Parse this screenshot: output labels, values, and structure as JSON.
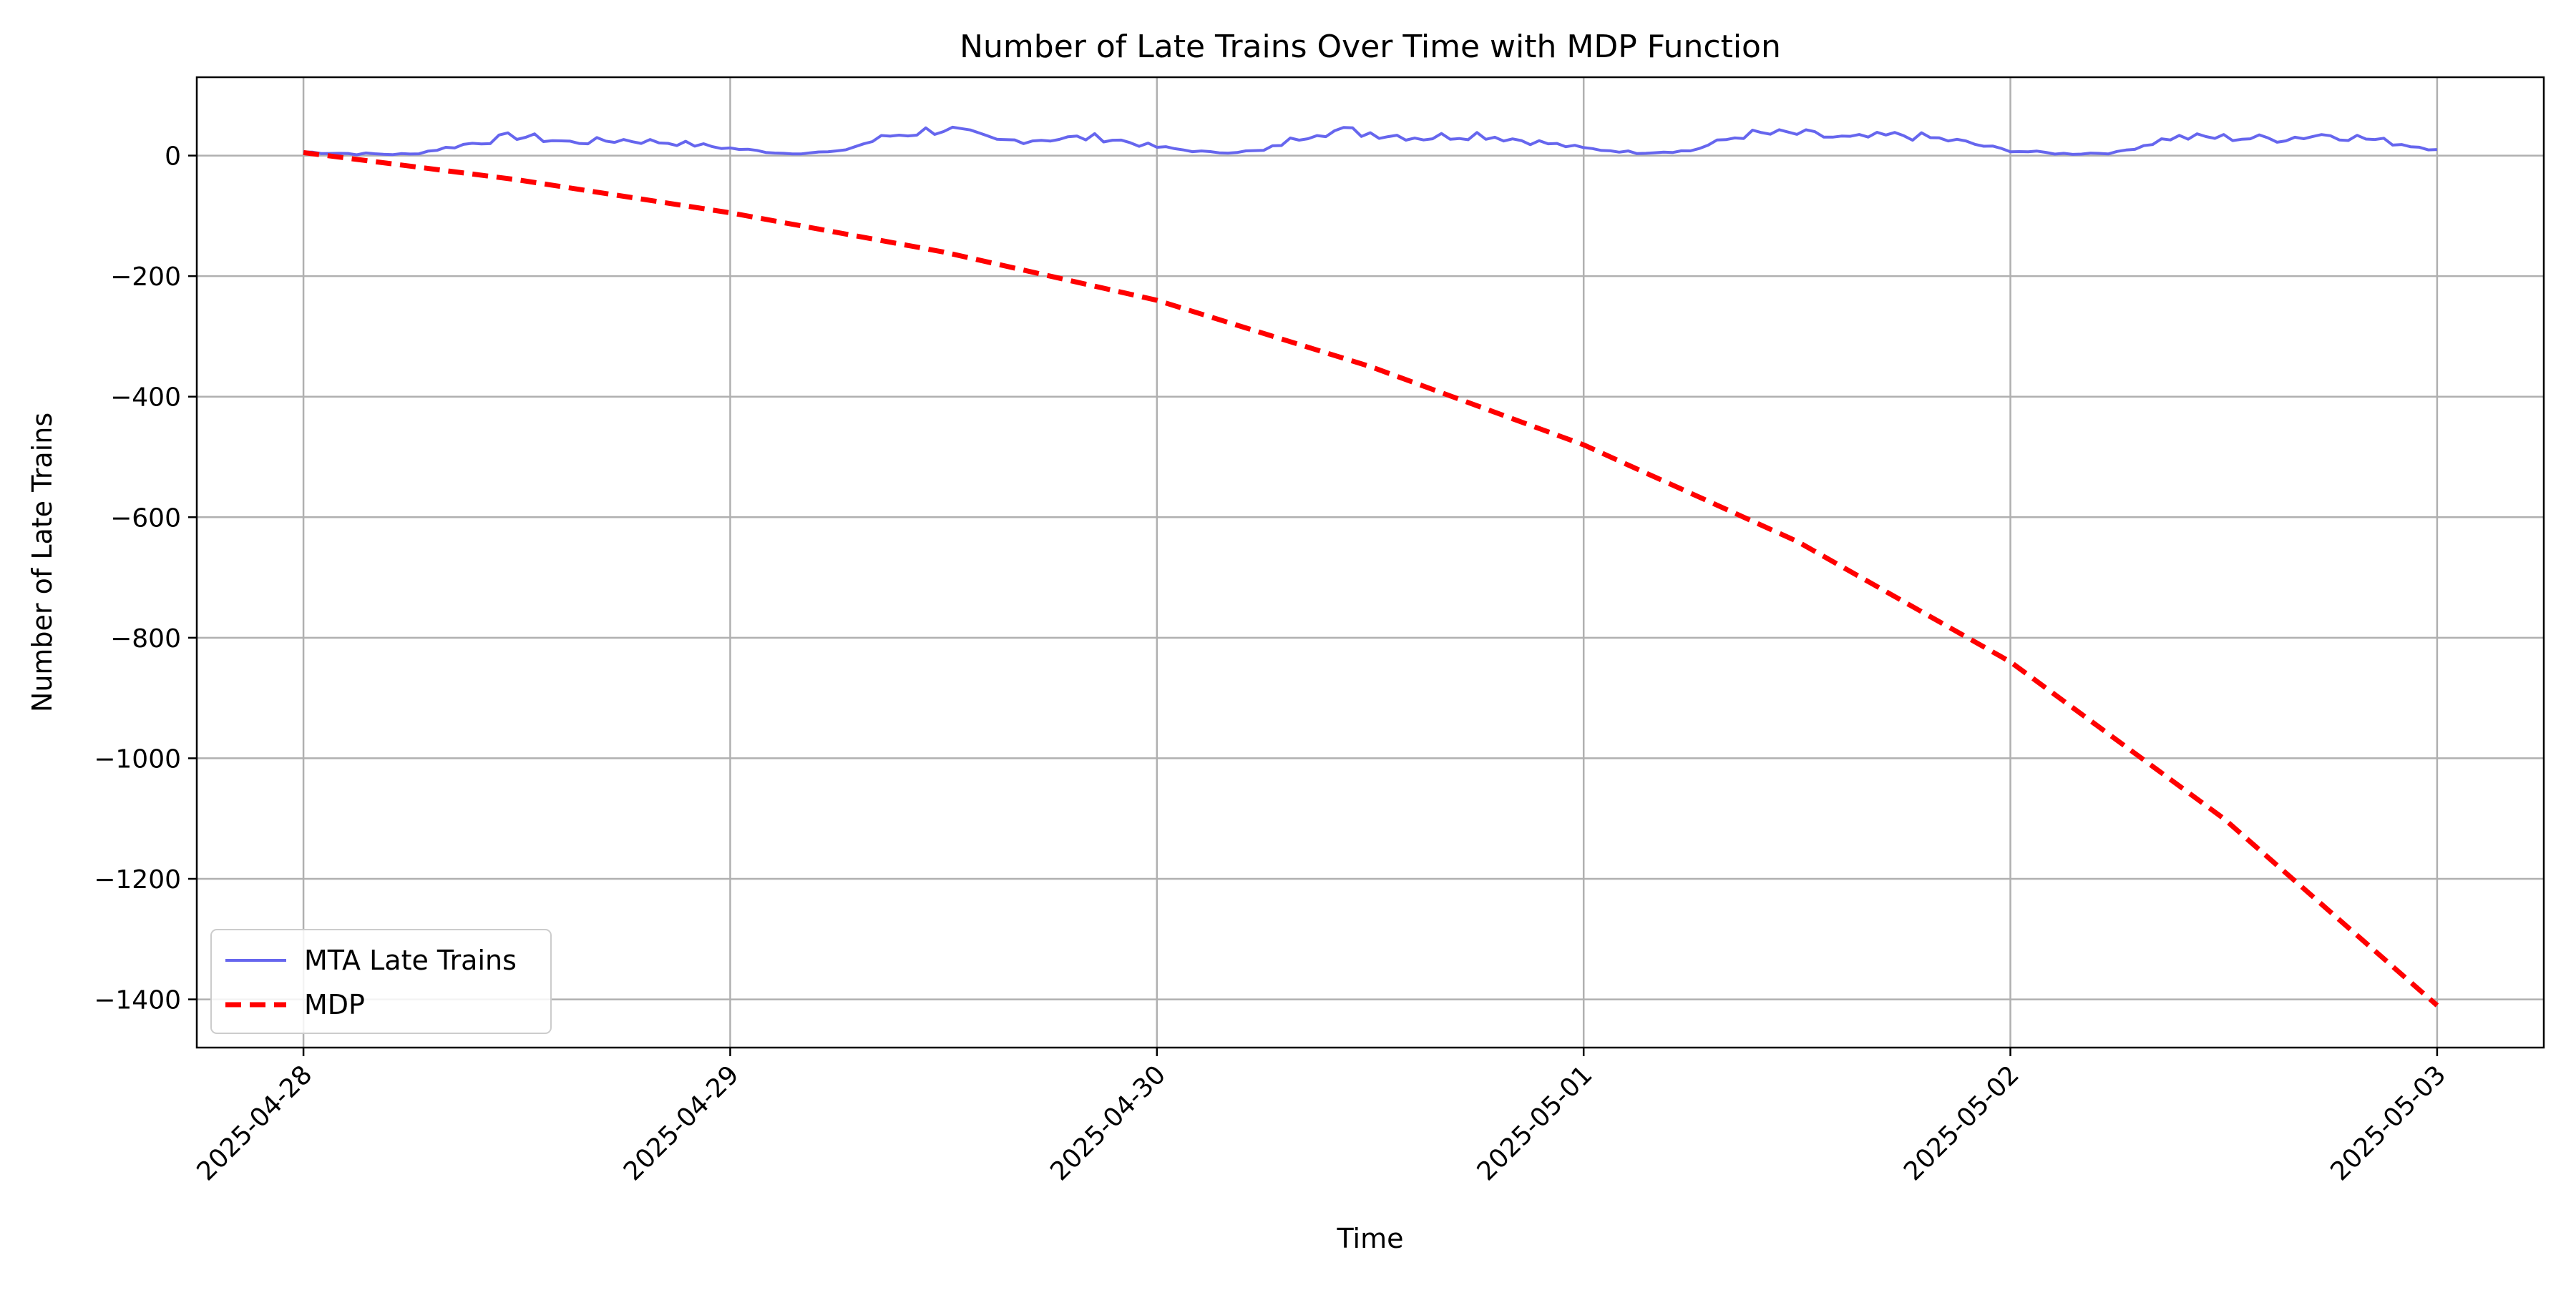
{
  "chart_data": {
    "type": "line",
    "title": "Number of Late Trains Over Time with MDP Function",
    "xlabel": "Time",
    "ylabel": "Number of Late Trains",
    "x_ticks": [
      "2025-04-28",
      "2025-04-29",
      "2025-04-30",
      "2025-05-01",
      "2025-05-02",
      "2025-05-03"
    ],
    "y_ticks": [
      0,
      -200,
      -400,
      -600,
      -800,
      -1000,
      -1200,
      -1400
    ],
    "y_tick_labels": [
      "0",
      "−200",
      "−400",
      "−600",
      "−800",
      "−1000",
      "−1200",
      "−1400"
    ],
    "xlim": [
      "2025-04-27 18:00",
      "2025-05-03 06:00"
    ],
    "ylim": [
      -1480,
      130
    ],
    "grid": true,
    "legend_position": "lower-left",
    "series": [
      {
        "name": "MTA Late Trains",
        "color": "#6666ee",
        "style": "solid",
        "x": [
          "2025-04-28 00:00",
          "2025-04-28 03:00",
          "2025-04-28 06:00",
          "2025-04-28 09:00",
          "2025-04-28 12:00",
          "2025-04-28 15:00",
          "2025-04-28 18:00",
          "2025-04-28 21:00",
          "2025-04-29 00:00",
          "2025-04-29 03:00",
          "2025-04-29 06:00",
          "2025-04-29 09:00",
          "2025-04-29 12:00",
          "2025-04-29 15:00",
          "2025-04-29 18:00",
          "2025-04-29 21:00",
          "2025-04-30 00:00",
          "2025-04-30 03:00",
          "2025-04-30 06:00",
          "2025-04-30 09:00",
          "2025-04-30 12:00",
          "2025-04-30 15:00",
          "2025-04-30 18:00",
          "2025-04-30 21:00",
          "2025-05-01 00:00",
          "2025-05-01 03:00",
          "2025-05-01 06:00",
          "2025-05-01 09:00",
          "2025-05-01 12:00",
          "2025-05-01 15:00",
          "2025-05-01 18:00",
          "2025-05-01 21:00",
          "2025-05-02 00:00",
          "2025-05-02 03:00",
          "2025-05-02 06:00",
          "2025-05-02 09:00",
          "2025-05-02 12:00",
          "2025-05-02 15:00",
          "2025-05-02 18:00",
          "2025-05-02 21:00",
          "2025-05-03 00:00"
        ],
        "y": [
          6,
          3,
          2,
          18,
          33,
          22,
          26,
          21,
          12,
          4,
          6,
          33,
          45,
          24,
          28,
          30,
          14,
          5,
          8,
          42,
          38,
          30,
          36,
          24,
          12,
          5,
          8,
          35,
          36,
          28,
          34,
          24,
          8,
          3,
          5,
          30,
          30,
          28,
          36,
          24,
          10
        ]
      },
      {
        "name": "MDP",
        "color": "#ff0000",
        "style": "dashed",
        "x": [
          "2025-04-28 00:00",
          "2025-04-28 12:00",
          "2025-04-29 00:00",
          "2025-04-29 12:00",
          "2025-04-30 00:00",
          "2025-04-30 12:00",
          "2025-05-01 00:00",
          "2025-05-01 12:00",
          "2025-05-02 00:00",
          "2025-05-02 12:00",
          "2025-05-03 00:00"
        ],
        "y": [
          5,
          -40,
          -95,
          -160,
          -240,
          -350,
          -480,
          -640,
          -840,
          -1100,
          -1410
        ]
      }
    ]
  }
}
